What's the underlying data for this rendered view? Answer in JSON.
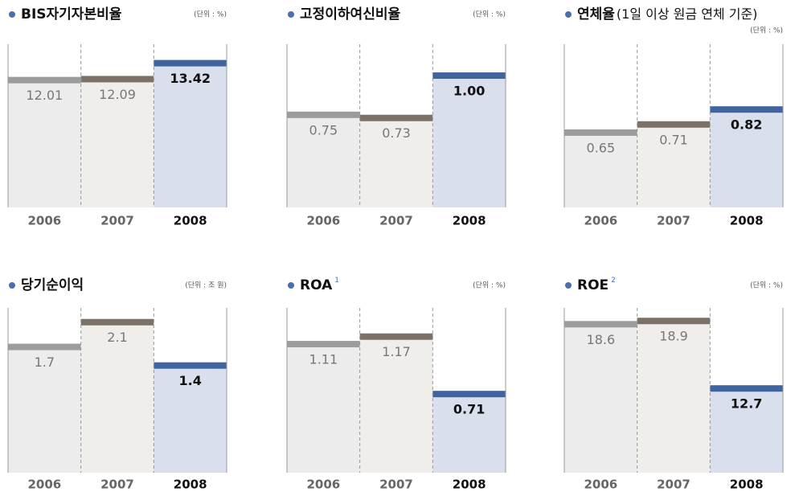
{
  "chart_data": [
    {
      "type": "bar",
      "title": "BIS자기자본비율",
      "unit": "(단위 : %)",
      "categories": [
        "2006",
        "2007",
        "2008"
      ],
      "values": [
        12.01,
        12.09,
        13.42
      ],
      "ylim": [
        1.4,
        15
      ],
      "colors": [
        "#9c9c9c",
        "#7b7166",
        "#3f64a0"
      ],
      "fill_colors": [
        "#ececed",
        "#efeeea",
        "#d9dfec"
      ]
    },
    {
      "type": "bar",
      "title": "고정이하여신비율",
      "unit": "(단위 : %)",
      "categories": [
        "2006",
        "2007",
        "2008"
      ],
      "values": [
        0.75,
        0.73,
        1
      ],
      "value_labels": [
        "0.75",
        "0.73",
        "1.00"
      ],
      "ylim": [
        0.16,
        1.2
      ],
      "colors": [
        "#9c9c9c",
        "#7b7166",
        "#3f64a0"
      ],
      "fill_colors": [
        "#ececed",
        "#efeeea",
        "#d9dfec"
      ]
    },
    {
      "type": "bar",
      "title": "연체율",
      "subtitle": "(1일 이상 원금 연체 기준)",
      "unit": "(단위 : %)",
      "categories": [
        "2006",
        "2007",
        "2008"
      ],
      "values": [
        0.65,
        0.71,
        0.82
      ],
      "ylim": [
        0.1,
        1.3
      ],
      "colors": [
        "#9c9c9c",
        "#7b7166",
        "#3f64a0"
      ],
      "fill_colors": [
        "#ececed",
        "#efeeea",
        "#d9dfec"
      ]
    },
    {
      "type": "bar",
      "title": "당기순이익",
      "unit": "(단위 : 조 원)",
      "categories": [
        "2006",
        "2007",
        "2008"
      ],
      "values": [
        1.7,
        2.1,
        1.4
      ],
      "ylim": [
        -0.33,
        2.33
      ],
      "colors": [
        "#9c9c9c",
        "#7b7166",
        "#3f64a0"
      ],
      "fill_colors": [
        "#ececed",
        "#efeeea",
        "#d9dfec"
      ]
    },
    {
      "type": "bar",
      "title": "ROA",
      "footnote_marker": "1",
      "unit": "(단위 : %)",
      "categories": [
        "2006",
        "2007",
        "2008"
      ],
      "values": [
        1.11,
        1.17,
        0.71
      ],
      "ylim": [
        0.08,
        1.4
      ],
      "colors": [
        "#9c9c9c",
        "#7b7166",
        "#3f64a0"
      ],
      "fill_colors": [
        "#ececed",
        "#efeeea",
        "#d9dfec"
      ]
    },
    {
      "type": "bar",
      "title": "ROE",
      "footnote_marker": "2",
      "unit": "(단위 : %)",
      "categories": [
        "2006",
        "2007",
        "2008"
      ],
      "values": [
        18.6,
        18.9,
        12.7
      ],
      "ylim": [
        4.96,
        20.1
      ],
      "colors": [
        "#9c9c9c",
        "#7b7166",
        "#3f64a0"
      ],
      "fill_colors": [
        "#ececed",
        "#efeeea",
        "#d9dfec"
      ]
    }
  ]
}
